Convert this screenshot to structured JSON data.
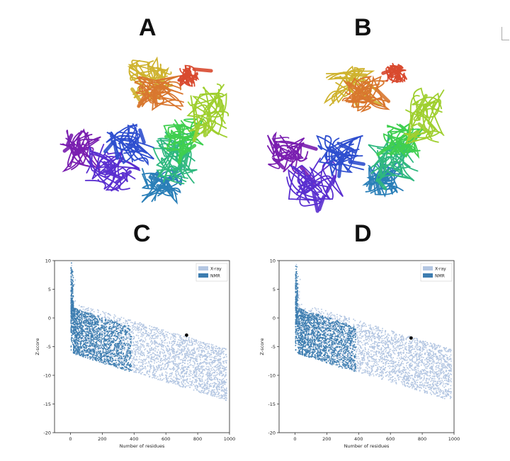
{
  "labels": {
    "a": "A",
    "b": "B",
    "c": "C",
    "d": "D"
  },
  "legend_colors": {
    "xray": "#b3c6e2",
    "nmr": "#3d7db0"
  },
  "structure_colors": [
    "#7a1fb0",
    "#5a2fd0",
    "#2f4fcf",
    "#2a7fb8",
    "#2fb87f",
    "#3fcf4f",
    "#9fcf2f",
    "#cfb32f",
    "#d9772f",
    "#d94a2f"
  ],
  "chart_data": [
    {
      "type": "scatter",
      "xlabel": "Number of residues",
      "ylabel": "Z-score",
      "xlim": [
        -100,
        1000
      ],
      "ylim": [
        -20,
        10
      ],
      "xticks": [
        0,
        200,
        400,
        600,
        800,
        1000
      ],
      "yticks": [
        10,
        5,
        0,
        -5,
        -10,
        -15,
        -20
      ],
      "legend": "top-right",
      "series": [
        {
          "name": "X-ray",
          "color": "#b3c6e2"
        },
        {
          "name": "NMR",
          "color": "#3d7db0"
        }
      ],
      "marker": {
        "x": 730,
        "y": -3
      }
    },
    {
      "type": "scatter",
      "xlabel": "Number of residues",
      "ylabel": "Z-score",
      "xlim": [
        -100,
        1000
      ],
      "ylim": [
        -20,
        10
      ],
      "xticks": [
        0,
        200,
        400,
        600,
        800,
        1000
      ],
      "yticks": [
        10,
        5,
        0,
        -5,
        -10,
        -15,
        -20
      ],
      "legend": "top-right",
      "series": [
        {
          "name": "X-ray",
          "color": "#b3c6e2"
        },
        {
          "name": "NMR",
          "color": "#3d7db0"
        }
      ],
      "marker": {
        "x": 730,
        "y": -3.5
      }
    }
  ]
}
